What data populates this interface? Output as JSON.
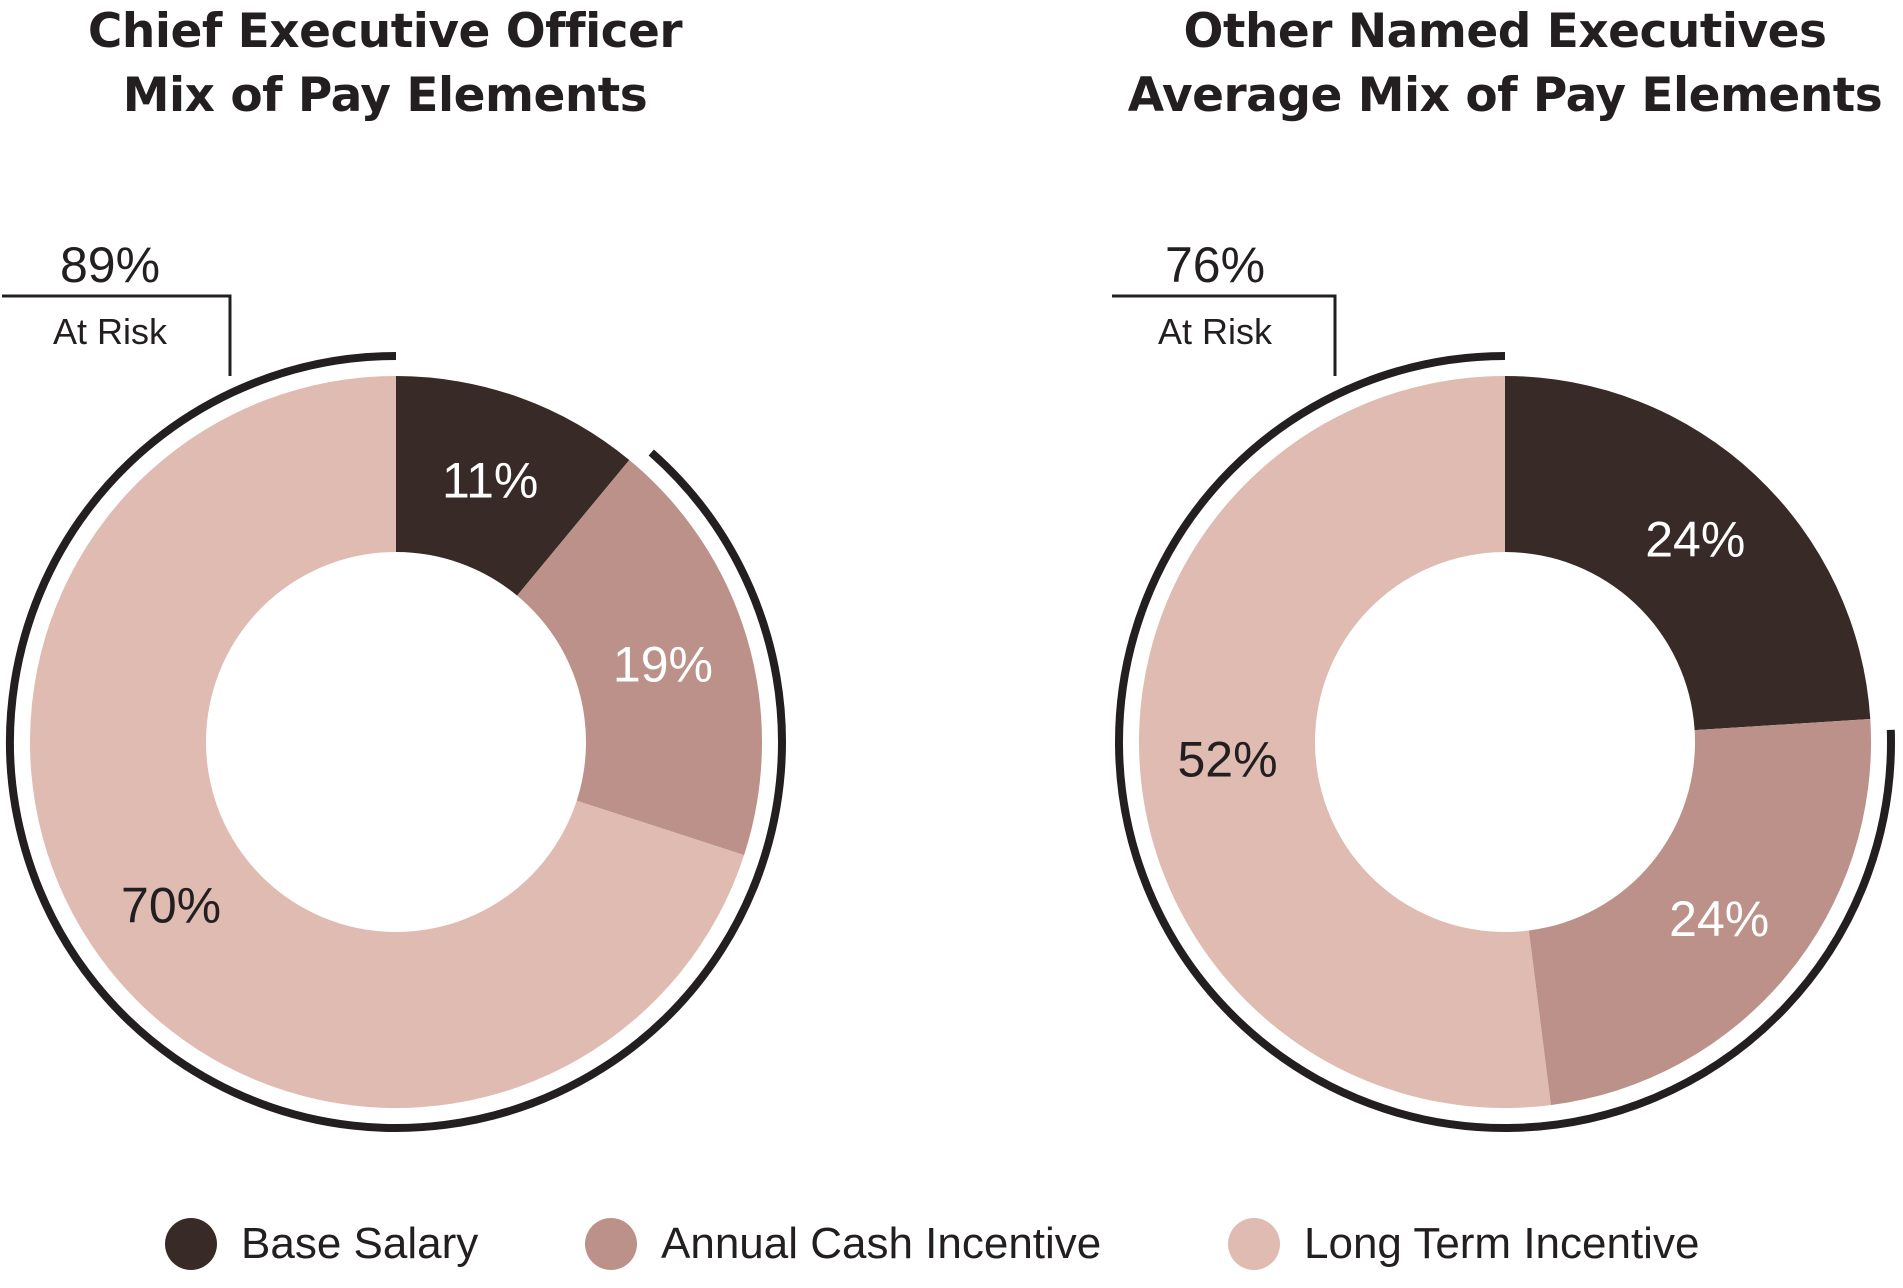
{
  "colors": {
    "base_salary": "#382b27",
    "annual_cash_incentive": "#bc918a",
    "long_term_incentive": "#dfbbb1",
    "at_risk_arc": "#231f20",
    "label_dark": "#231f20",
    "label_light": "#ffffff"
  },
  "chart_data": [
    {
      "type": "pie",
      "variant": "donut",
      "title_lines": [
        "Chief Executive Officer",
        "Mix of Pay Elements"
      ],
      "categories": [
        "Base Salary",
        "Annual Cash Incentive",
        "Long Term Incentive"
      ],
      "values": [
        11,
        19,
        70
      ],
      "value_labels": [
        "11%",
        "19%",
        "70%"
      ],
      "at_risk": {
        "value": 89,
        "label": "89%",
        "caption": "At Risk"
      }
    },
    {
      "type": "pie",
      "variant": "donut",
      "title_lines": [
        "Other Named Executives",
        "Average Mix of Pay Elements"
      ],
      "categories": [
        "Base Salary",
        "Annual Cash Incentive",
        "Long Term Incentive"
      ],
      "values": [
        24,
        24,
        52
      ],
      "value_labels": [
        "24%",
        "24%",
        "52%"
      ],
      "at_risk": {
        "value": 76,
        "label": "76%",
        "caption": "At Risk"
      }
    }
  ],
  "legend": [
    {
      "label": "Base Salary",
      "color_key": "base_salary",
      "icon": "circle-swatch-icon"
    },
    {
      "label": "Annual Cash Incentive",
      "color_key": "annual_cash_incentive",
      "icon": "circle-swatch-icon"
    },
    {
      "label": "Long Term Incentive",
      "color_key": "long_term_incentive",
      "icon": "circle-swatch-icon"
    }
  ]
}
